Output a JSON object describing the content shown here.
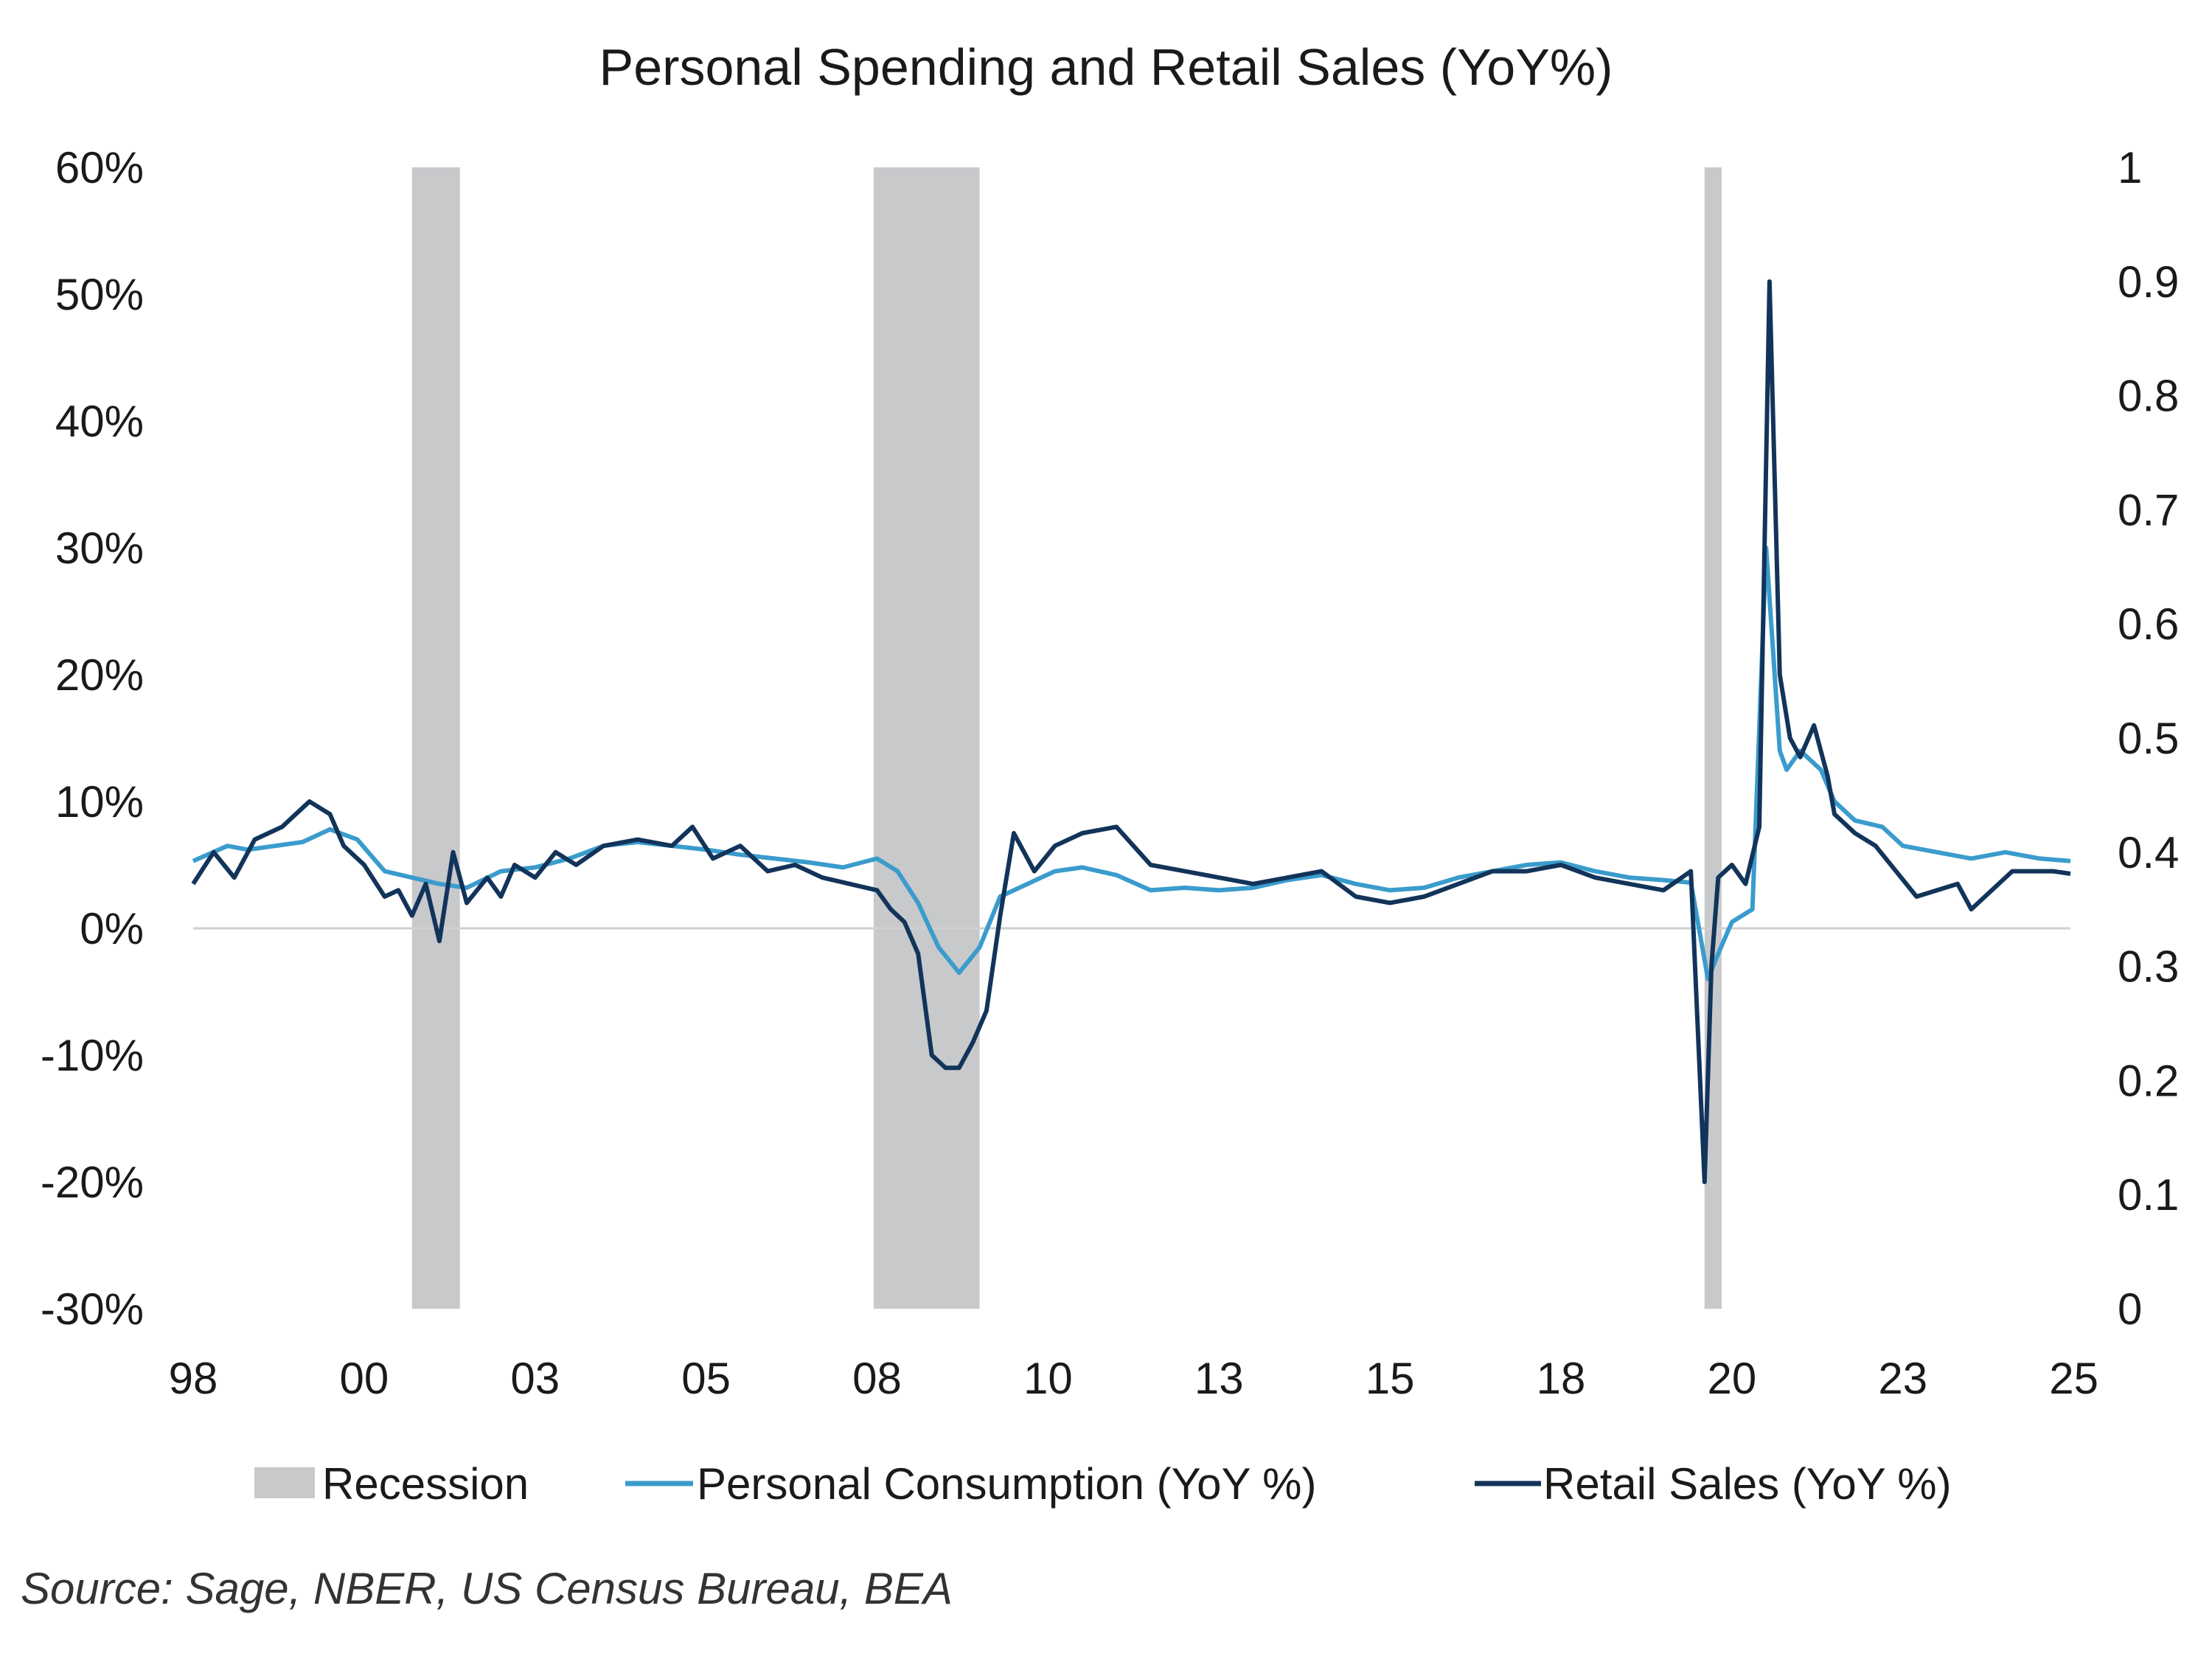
{
  "chart_data": {
    "type": "line",
    "title": "Personal Spending and Retail Sales (YoY%)",
    "left_axis": {
      "min": -30,
      "max": 60,
      "step": 10,
      "tick_labels": [
        "60%",
        "50%",
        "40%",
        "30%",
        "20%",
        "10%",
        "0%",
        "-10%",
        "-20%",
        "-30%"
      ]
    },
    "right_axis": {
      "min": 0,
      "max": 1,
      "step": 0.1,
      "tick_labels": [
        "1",
        "0.9",
        "0.8",
        "0.7",
        "0.6",
        "0.5",
        "0.4",
        "0.3",
        "0.2",
        "0.1",
        "0"
      ]
    },
    "x_axis": {
      "range": [
        1998.0,
        2025.45
      ],
      "tick_labels": [
        "98",
        "00",
        "03",
        "05",
        "08",
        "10",
        "13",
        "15",
        "18",
        "20",
        "23",
        "25"
      ],
      "tick_positions": [
        1998,
        2000.5,
        2003,
        2005.5,
        2008,
        2010.5,
        2013,
        2015.5,
        2018,
        2020.5,
        2023,
        2025.5
      ]
    },
    "recessions": [
      {
        "start": 2001.2,
        "end": 2001.9
      },
      {
        "start": 2007.95,
        "end": 2009.5
      },
      {
        "start": 2020.1,
        "end": 2020.35
      }
    ],
    "series": [
      {
        "name": "Personal Consumption (YoY %)",
        "color": "#3a9ccc",
        "x": [
          1998.0,
          1998.5,
          1998.8,
          1999.2,
          1999.6,
          2000.0,
          2000.4,
          2000.8,
          2001.2,
          2001.6,
          2002.0,
          2002.5,
          2003.0,
          2003.5,
          2004.0,
          2004.5,
          2005.0,
          2005.5,
          2006.0,
          2006.5,
          2007.0,
          2007.5,
          2008.0,
          2008.3,
          2008.6,
          2008.9,
          2009.2,
          2009.5,
          2009.8,
          2010.2,
          2010.6,
          2011.0,
          2011.5,
          2012.0,
          2012.5,
          2013.0,
          2013.5,
          2014.0,
          2014.5,
          2015.0,
          2015.5,
          2016.0,
          2016.5,
          2017.0,
          2017.5,
          2018.0,
          2018.5,
          2019.0,
          2019.5,
          2019.9,
          2020.15,
          2020.3,
          2020.5,
          2020.8,
          2021.0,
          2021.2,
          2021.3,
          2021.5,
          2021.8,
          2022.0,
          2022.3,
          2022.7,
          2023.0,
          2023.5,
          2024.0,
          2024.5,
          2025.0,
          2025.45
        ],
        "values": [
          5.3,
          6.5,
          6.2,
          6.5,
          6.8,
          7.8,
          7.0,
          4.5,
          4.0,
          3.5,
          3.2,
          4.5,
          4.8,
          5.5,
          6.5,
          6.8,
          6.5,
          6.2,
          5.8,
          5.5,
          5.2,
          4.8,
          5.5,
          4.5,
          2.0,
          -1.5,
          -3.5,
          -1.5,
          2.5,
          3.5,
          4.5,
          4.8,
          4.2,
          3.0,
          3.2,
          3.0,
          3.2,
          3.8,
          4.2,
          3.5,
          3.0,
          3.2,
          4.0,
          4.5,
          5.0,
          5.2,
          4.5,
          4.0,
          3.8,
          3.6,
          -4.0,
          -2.0,
          0.5,
          1.5,
          30.0,
          14.0,
          12.5,
          14.0,
          12.5,
          10.0,
          8.5,
          8.0,
          6.5,
          6.0,
          5.5,
          6.0,
          5.5,
          5.3
        ]
      },
      {
        "name": "Retail Sales (YoY %)",
        "color": "#12345a",
        "x": [
          1998.0,
          1998.3,
          1998.6,
          1998.9,
          1999.3,
          1999.7,
          2000.0,
          2000.2,
          2000.5,
          2000.8,
          2001.0,
          2001.2,
          2001.4,
          2001.6,
          2001.8,
          2002.0,
          2002.3,
          2002.5,
          2002.7,
          2003.0,
          2003.3,
          2003.6,
          2004.0,
          2004.5,
          2005.0,
          2005.3,
          2005.6,
          2006.0,
          2006.4,
          2006.8,
          2007.2,
          2007.6,
          2008.0,
          2008.2,
          2008.4,
          2008.6,
          2008.8,
          2009.0,
          2009.2,
          2009.4,
          2009.6,
          2009.8,
          2010.0,
          2010.3,
          2010.6,
          2011.0,
          2011.5,
          2012.0,
          2012.5,
          2013.0,
          2013.5,
          2014.0,
          2014.5,
          2015.0,
          2015.5,
          2016.0,
          2016.5,
          2017.0,
          2017.5,
          2018.0,
          2018.5,
          2019.0,
          2019.5,
          2019.9,
          2020.1,
          2020.2,
          2020.3,
          2020.5,
          2020.7,
          2020.9,
          2021.05,
          2021.2,
          2021.35,
          2021.5,
          2021.7,
          2021.9,
          2022.0,
          2022.3,
          2022.6,
          2022.9,
          2023.2,
          2023.5,
          2023.8,
          2024.0,
          2024.3,
          2024.6,
          2024.9,
          2025.2,
          2025.45
        ],
        "values": [
          3.5,
          6.0,
          4.0,
          7.0,
          8.0,
          10.0,
          9.0,
          6.5,
          5.0,
          2.5,
          3.0,
          1.0,
          3.5,
          -1.0,
          6.0,
          2.0,
          4.0,
          2.5,
          5.0,
          4.0,
          6.0,
          5.0,
          6.5,
          7.0,
          6.5,
          8.0,
          5.5,
          6.5,
          4.5,
          5.0,
          4.0,
          3.5,
          3.0,
          1.5,
          0.5,
          -2.0,
          -10.0,
          -11.0,
          -11.0,
          -9.0,
          -6.5,
          1.0,
          7.5,
          4.5,
          6.5,
          7.5,
          8.0,
          5.0,
          4.5,
          4.0,
          3.5,
          4.0,
          4.5,
          2.5,
          2.0,
          2.5,
          3.5,
          4.5,
          4.5,
          5.0,
          4.0,
          3.5,
          3.0,
          4.5,
          -20.0,
          -3.0,
          4.0,
          5.0,
          3.5,
          8.0,
          51.0,
          20.0,
          15.0,
          13.5,
          16.0,
          12.0,
          9.0,
          7.5,
          6.5,
          4.5,
          2.5,
          3.0,
          3.5,
          1.5,
          3.0,
          4.5,
          4.5,
          4.5,
          4.3
        ]
      }
    ],
    "legend": [
      {
        "label": "Recession",
        "kind": "box",
        "color": "#c8c9cb"
      },
      {
        "label": "Personal Consumption (YoY %)",
        "kind": "line",
        "color": "#3a9ccc"
      },
      {
        "label": "Retail Sales (YoY %)",
        "kind": "line",
        "color": "#12345a"
      }
    ],
    "legend_position": "bottom-center",
    "grid": false,
    "source": "Source: Sage, NBER, US Census Bureau, BEA"
  }
}
